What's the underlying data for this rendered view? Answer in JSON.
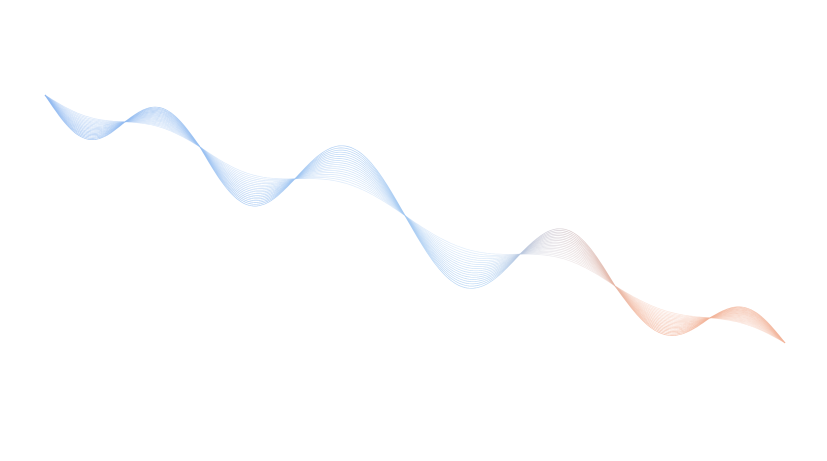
{
  "colors": {
    "background": "#ffffff",
    "wave_start": "#8fb8f0",
    "wave_mid": "#a9cdf2",
    "wave_end": "#f2b49a"
  },
  "decoration": {
    "type": "flowing-line-wave",
    "line_count": 18
  }
}
